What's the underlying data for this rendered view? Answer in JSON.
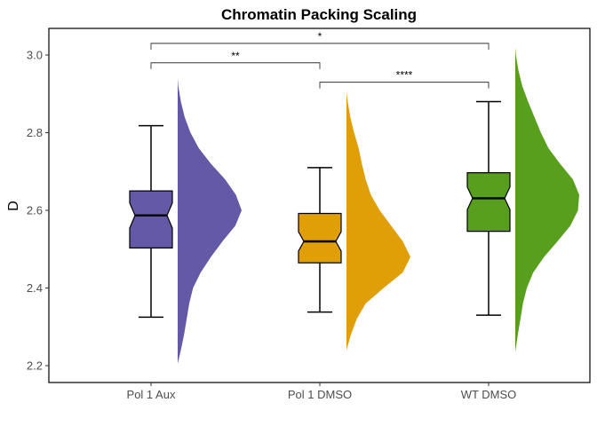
{
  "chart_data": {
    "type": "raincloud",
    "title": "Chromatin Packing Scaling",
    "xlabel": "",
    "ylabel": "D",
    "ylim": [
      2.16,
      3.07
    ],
    "yticks": [
      "2.2",
      "2.4",
      "2.6",
      "2.8",
      "3.0"
    ],
    "grid": false,
    "legend": "none",
    "categories": [
      "Pol 1 Aux",
      "Pol 1 DMSO",
      "WT DMSO"
    ],
    "boxes": [
      {
        "group": "Pol 1 Aux",
        "min": 2.325,
        "q1": 2.503,
        "median": 2.587,
        "q3": 2.65,
        "max": 2.818,
        "notch_low": 2.554,
        "notch_high": 2.619,
        "color": "#6359A6"
      },
      {
        "group": "Pol 1 DMSO",
        "min": 2.338,
        "q1": 2.465,
        "median": 2.52,
        "q3": 2.592,
        "max": 2.71,
        "notch_low": 2.495,
        "notch_high": 2.545,
        "color": "#E09F06"
      },
      {
        "group": "WT DMSO",
        "min": 2.33,
        "q1": 2.546,
        "median": 2.631,
        "q3": 2.697,
        "max": 2.88,
        "notch_low": 2.602,
        "notch_high": 2.66,
        "color": "#579F1C"
      }
    ],
    "densities": [
      {
        "group": "Pol 1 Aux",
        "color": "#6359A6",
        "y": [
          2.205,
          2.24,
          2.28,
          2.32,
          2.36,
          2.4,
          2.44,
          2.48,
          2.52,
          2.56,
          2.6,
          2.64,
          2.68,
          2.72,
          2.76,
          2.8,
          2.84,
          2.88,
          2.92,
          2.94
        ],
        "width": [
          0.0,
          0.05,
          0.1,
          0.14,
          0.18,
          0.24,
          0.36,
          0.52,
          0.7,
          0.9,
          1.0,
          0.91,
          0.74,
          0.52,
          0.33,
          0.2,
          0.11,
          0.05,
          0.01,
          0.0
        ]
      },
      {
        "group": "Pol 1 DMSO",
        "color": "#E09F06",
        "y": [
          2.24,
          2.28,
          2.32,
          2.36,
          2.4,
          2.44,
          2.48,
          2.52,
          2.56,
          2.6,
          2.64,
          2.68,
          2.72,
          2.76,
          2.8,
          2.84,
          2.88,
          2.905
        ],
        "width": [
          0.0,
          0.07,
          0.16,
          0.3,
          0.58,
          0.88,
          1.0,
          0.88,
          0.7,
          0.52,
          0.38,
          0.3,
          0.24,
          0.19,
          0.12,
          0.06,
          0.02,
          0.0
        ]
      },
      {
        "group": "WT DMSO",
        "color": "#579F1C",
        "y": [
          2.235,
          2.28,
          2.32,
          2.36,
          2.4,
          2.44,
          2.48,
          2.52,
          2.56,
          2.6,
          2.64,
          2.68,
          2.72,
          2.76,
          2.8,
          2.84,
          2.88,
          2.92,
          2.96,
          3.0,
          3.02
        ],
        "width": [
          0.0,
          0.04,
          0.08,
          0.12,
          0.18,
          0.28,
          0.45,
          0.66,
          0.86,
          0.98,
          1.0,
          0.9,
          0.7,
          0.52,
          0.4,
          0.3,
          0.2,
          0.11,
          0.05,
          0.01,
          0.0
        ]
      }
    ],
    "significance": [
      {
        "from": "Pol 1 Aux",
        "to": "WT DMSO",
        "y": 3.03,
        "label": "*"
      },
      {
        "from": "Pol 1 Aux",
        "to": "Pol 1 DMSO",
        "y": 2.98,
        "label": "**"
      },
      {
        "from": "Pol 1 DMSO",
        "to": "WT DMSO",
        "y": 2.93,
        "label": "****"
      }
    ]
  }
}
